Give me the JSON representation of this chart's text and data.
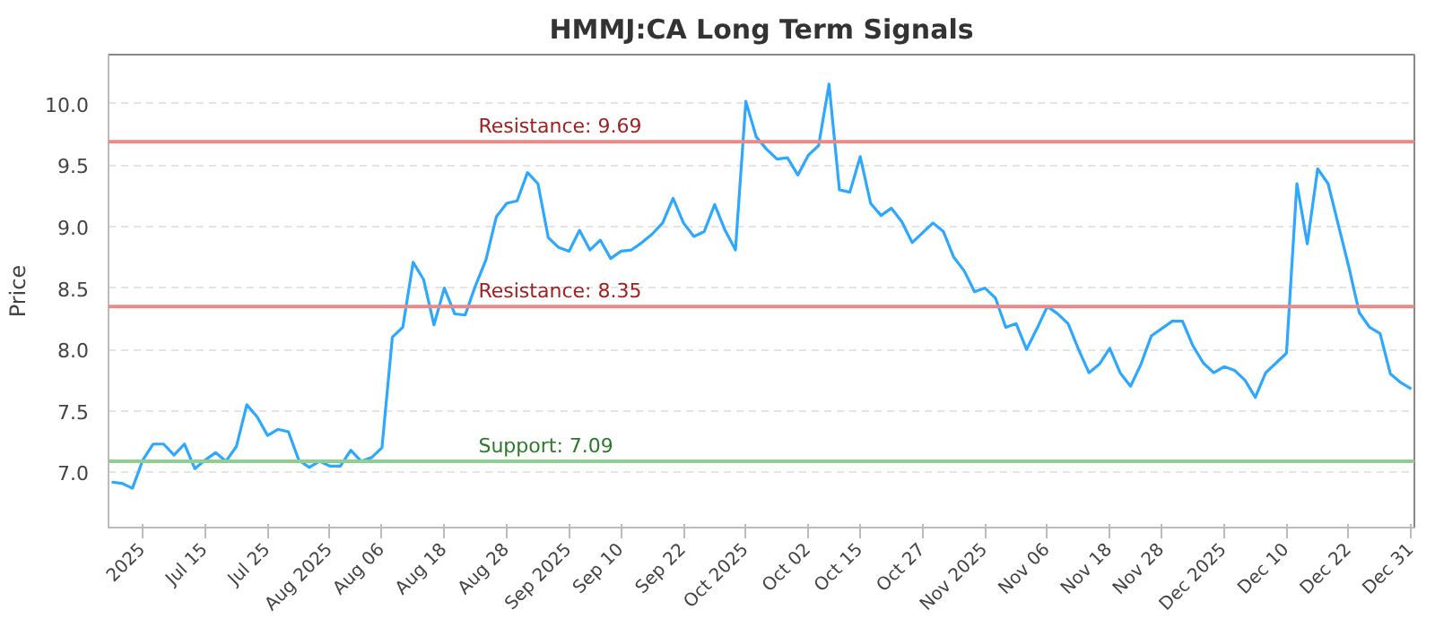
{
  "chart_data": {
    "type": "line",
    "title": "HMMJ:CA Long Term Signals",
    "ylabel": "Price",
    "categories": [
      null,
      null,
      null,
      "2025",
      null,
      null,
      null,
      null,
      null,
      "Jul 15",
      null,
      null,
      null,
      null,
      null,
      "Jul 25",
      null,
      null,
      null,
      null,
      null,
      "Aug 2025",
      null,
      null,
      null,
      null,
      "Aug 06",
      null,
      null,
      null,
      null,
      null,
      "Aug 18",
      null,
      null,
      null,
      null,
      null,
      "Aug 28",
      null,
      null,
      null,
      null,
      null,
      "Sep 2025",
      null,
      null,
      null,
      null,
      "Sep 10",
      null,
      null,
      null,
      null,
      null,
      "Sep 22",
      null,
      null,
      null,
      null,
      null,
      "Oct 2025",
      null,
      null,
      null,
      null,
      null,
      "Oct 02",
      null,
      null,
      null,
      null,
      "Oct 15",
      null,
      null,
      null,
      null,
      null,
      "Oct 27",
      null,
      null,
      null,
      null,
      null,
      "Nov 2025",
      null,
      null,
      null,
      null,
      null,
      "Nov 06",
      null,
      null,
      null,
      null,
      null,
      "Nov 18",
      null,
      null,
      null,
      null,
      "Nov 28",
      null,
      null,
      null,
      null,
      null,
      "Dec 2025",
      null,
      null,
      null,
      null,
      null,
      "Dec 10",
      null,
      null,
      null,
      null,
      null,
      "Dec 22",
      null,
      null,
      null,
      null,
      null,
      "Dec 31"
    ],
    "series": [
      {
        "color": "#2ea8ff",
        "values": [
          6.92,
          6.91,
          6.87,
          7.1,
          7.23,
          7.23,
          7.14,
          7.23,
          7.03,
          7.1,
          7.16,
          7.09,
          7.21,
          7.55,
          7.45,
          7.3,
          7.35,
          7.33,
          7.1,
          7.04,
          7.09,
          7.05,
          7.05,
          7.18,
          7.09,
          7.12,
          7.2,
          8.1,
          8.18,
          8.71,
          8.57,
          8.2,
          8.5,
          8.29,
          8.28,
          8.52,
          8.73,
          9.08,
          9.19,
          9.21,
          9.44,
          9.35,
          8.91,
          8.83,
          8.8,
          8.97,
          8.81,
          8.89,
          8.74,
          8.8,
          8.81,
          8.87,
          8.94,
          9.03,
          9.23,
          9.03,
          8.92,
          8.96,
          9.18,
          8.97,
          8.81,
          10.02,
          9.73,
          9.63,
          9.55,
          9.56,
          9.42,
          9.58,
          9.66,
          10.16,
          9.3,
          9.28,
          9.57,
          9.19,
          9.09,
          9.15,
          9.04,
          8.87,
          8.95,
          9.03,
          8.96,
          8.75,
          8.64,
          8.47,
          8.5,
          8.42,
          8.18,
          8.21,
          8.0,
          8.17,
          8.35,
          8.29,
          8.21,
          8.0,
          7.81,
          7.88,
          8.01,
          7.81,
          7.7,
          7.88,
          8.11,
          8.17,
          8.23,
          8.23,
          8.03,
          7.89,
          7.81,
          7.86,
          7.83,
          7.75,
          7.61,
          7.81,
          7.89,
          7.97,
          9.35,
          8.86,
          9.47,
          9.35,
          9.01,
          8.67,
          8.3,
          8.18,
          8.13,
          7.8,
          7.73,
          7.68
        ]
      }
    ],
    "ylim": [
      6.55,
      10.4
    ],
    "yticks": [
      {
        "value": 7,
        "label": "7.0"
      },
      {
        "value": 7.5,
        "label": "7.5"
      },
      {
        "value": 8,
        "label": "8.0"
      },
      {
        "value": 8.5,
        "label": "8.5"
      },
      {
        "value": 9,
        "label": "9.0"
      },
      {
        "value": 9.5,
        "label": "9.5"
      },
      {
        "value": 10,
        "label": "10.0"
      }
    ],
    "grid": "y",
    "line_style": "solid",
    "ref_lines": [
      {
        "axis": "y",
        "value": 9.69,
        "label": "Resistance: 9.69",
        "color": "#e88a8a"
      },
      {
        "axis": "y",
        "value": 8.35,
        "label": "Resistance: 8.35",
        "color": "#e88a8a"
      },
      {
        "axis": "y",
        "value": 7.09,
        "label": "Support: 7.09",
        "color": "#8fd08f"
      }
    ]
  }
}
